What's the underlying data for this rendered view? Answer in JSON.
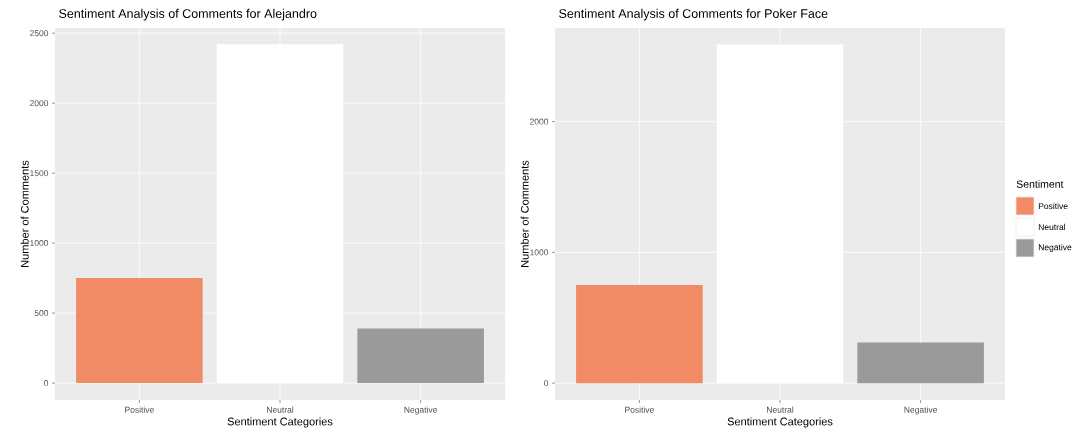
{
  "chart_data": [
    {
      "type": "bar",
      "title": "Sentiment Analysis of Comments for Alejandro",
      "xlabel": "Sentiment Categories",
      "ylabel": "Number of Comments",
      "categories": [
        "Positive",
        "Neutral",
        "Negative"
      ],
      "values": [
        750,
        2420,
        390
      ],
      "colors": [
        "#f08b65",
        "#ffffff",
        "#9a9a9a"
      ],
      "ylim": [
        -121,
        2537
      ],
      "yticks": [
        0,
        500,
        1000,
        1500,
        2000,
        2500
      ],
      "grid": true
    },
    {
      "type": "bar",
      "title": "Sentiment Analysis of Comments for Poker Face",
      "xlabel": "Sentiment Categories",
      "ylabel": "Number of Comments",
      "legend_title": "Sentiment",
      "categories": [
        "Positive",
        "Neutral",
        "Negative"
      ],
      "series": [
        {
          "name": "Positive",
          "color": "#f08b65",
          "values": [
            750,
            null,
            null
          ]
        },
        {
          "name": "Neutral",
          "color": "#ffffff",
          "values": [
            null,
            2590,
            null
          ]
        },
        {
          "name": "Negative",
          "color": "#9a9a9a",
          "values": [
            null,
            null,
            310
          ]
        }
      ],
      "ylim": [
        -129,
        2716
      ],
      "yticks": [
        0,
        1000,
        2000
      ],
      "grid": true,
      "legend": "right"
    }
  ]
}
